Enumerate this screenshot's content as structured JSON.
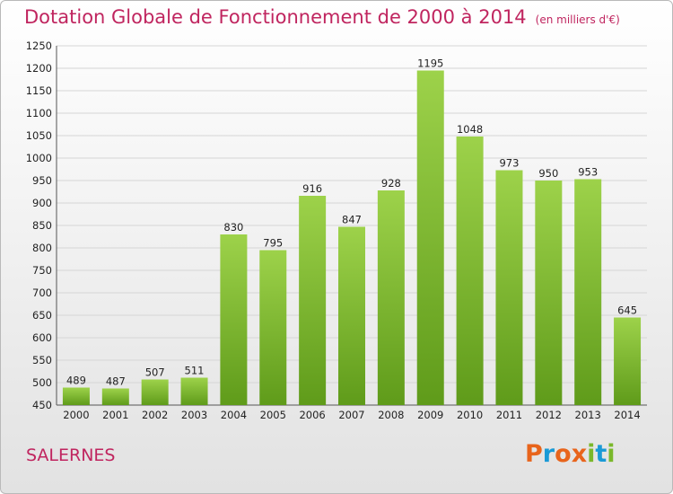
{
  "chart_data": {
    "type": "bar",
    "title": "Dotation Globale de Fonctionnement de 2000 à 2014",
    "subtitle": "(en milliers d'€)",
    "categories": [
      "2000",
      "2001",
      "2002",
      "2003",
      "2004",
      "2005",
      "2006",
      "2007",
      "2008",
      "2009",
      "2010",
      "2011",
      "2012",
      "2013",
      "2014"
    ],
    "values": [
      489,
      487,
      507,
      511,
      830,
      795,
      916,
      847,
      928,
      1195,
      1048,
      973,
      950,
      953,
      645
    ],
    "ylim": [
      450,
      1250
    ],
    "yticks": [
      450,
      500,
      550,
      600,
      650,
      700,
      750,
      800,
      850,
      900,
      950,
      1000,
      1050,
      1100,
      1150,
      1200,
      1250
    ],
    "grid": true,
    "bar_color": "#7fbf2e"
  },
  "commune": "SALERNES",
  "logo": {
    "text": "Proxiti",
    "letters": [
      "P",
      "r",
      "o",
      "x",
      "i",
      "t",
      "i"
    ],
    "colors": [
      "#e8641b",
      "#1a9ad6",
      "#e8641b",
      "#e8641b",
      "#7ab82b",
      "#1a9ad6",
      "#7ab82b"
    ]
  }
}
